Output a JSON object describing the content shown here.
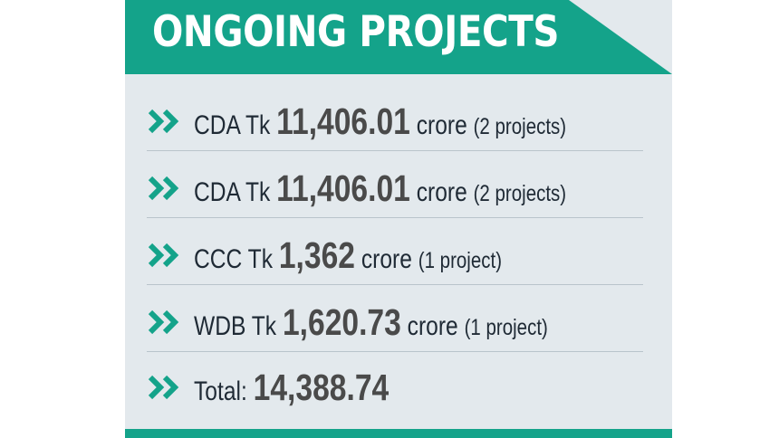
{
  "header": {
    "title": "ONGOING PROJECTS"
  },
  "rows": [
    {
      "agency": "CDA Tk",
      "amount": "11,406.01",
      "unit": "crore",
      "detail": "(2 projects)"
    },
    {
      "agency": "CDA Tk",
      "amount": "11,406.01",
      "unit": "crore",
      "detail": "(2 projects)"
    },
    {
      "agency": "CCC Tk",
      "amount": "1,362",
      "unit": "crore",
      "detail": "(1 project)"
    },
    {
      "agency": "WDB Tk",
      "amount": "1,620.73",
      "unit": "crore",
      "detail": "(1 project)"
    }
  ],
  "total": {
    "label": "Total:",
    "amount": "14,388.74"
  },
  "colors": {
    "accent": "#14a38a",
    "panel": "#e3e9ed",
    "text": "#1f2a35",
    "amount": "#4a4a4a"
  },
  "icons": {
    "bullet": "double-chevron-right-icon"
  }
}
